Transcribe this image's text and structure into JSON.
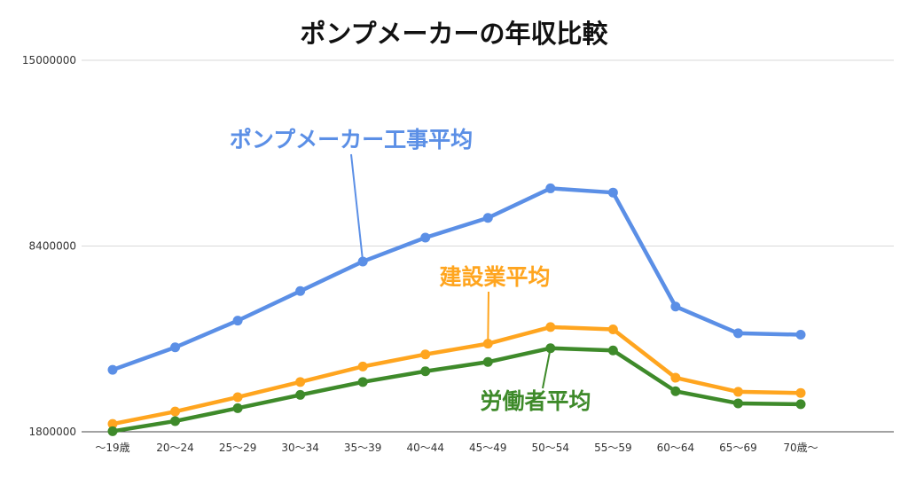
{
  "chart_data": {
    "type": "line",
    "title": "ポンプメーカーの年収比較",
    "xlabel": "",
    "ylabel": "",
    "categories": [
      "〜19歳",
      "20〜24",
      "25〜29",
      "30〜34",
      "35〜39",
      "40〜44",
      "45〜49",
      "50〜54",
      "55〜59",
      "60〜64",
      "65〜69",
      "70歳〜"
    ],
    "y_ticks": [
      "1800000",
      "8400000",
      "15000000"
    ],
    "y_tick_values": [
      1800000,
      8400000,
      15000000
    ],
    "ylim": [
      1800000,
      15000000
    ],
    "grid": true,
    "legend": "none",
    "series": [
      {
        "name": "ポンプメーカー工事平均",
        "color": "#5b8fe6",
        "values": [
          4000000,
          4800000,
          5750000,
          6800000,
          7850000,
          8700000,
          9400000,
          10450000,
          10300000,
          6250000,
          5300000,
          5250000
        ]
      },
      {
        "name": "建設業平均",
        "color": "#ffa51f",
        "values": [
          2080000,
          2520000,
          3030000,
          3570000,
          4120000,
          4550000,
          4930000,
          5520000,
          5440000,
          3720000,
          3220000,
          3180000
        ]
      },
      {
        "name": "労働者平均",
        "color": "#3e8a2a",
        "values": [
          1820000,
          2180000,
          2640000,
          3110000,
          3570000,
          3950000,
          4280000,
          4770000,
          4690000,
          3240000,
          2810000,
          2780000
        ]
      }
    ],
    "annotations": [
      {
        "series": 0,
        "text": "ポンプメーカー工事平均",
        "point_index": 4
      },
      {
        "series": 1,
        "text": "建設業平均",
        "point_index": 6
      },
      {
        "series": 2,
        "text": "労働者平均",
        "point_index": 7
      }
    ]
  }
}
